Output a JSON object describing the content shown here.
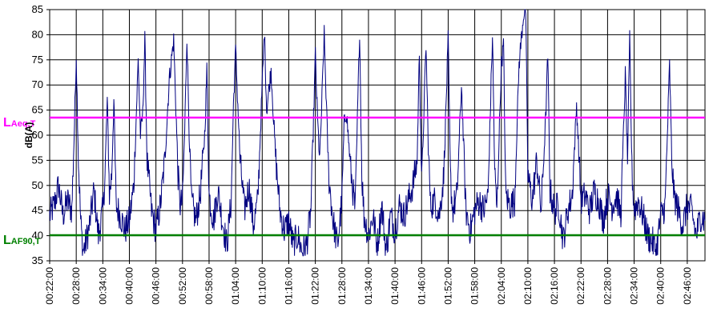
{
  "chart_data": {
    "type": "line",
    "title": "",
    "xlabel": "",
    "ylabel": "dB(A)",
    "ylim": [
      35,
      85
    ],
    "yticks": [
      35,
      40,
      45,
      50,
      55,
      60,
      65,
      70,
      75,
      80,
      85
    ],
    "xrange": [
      "00:22:00",
      "02:50:00"
    ],
    "xtick_labels": [
      "00:22:00",
      "00:28:00",
      "00:34:00",
      "00:40:00",
      "00:46:00",
      "00:52:00",
      "00:58:00",
      "01:04:00",
      "01:10:00",
      "01:16:00",
      "01:22:00",
      "01:28:00",
      "01:34:00",
      "01:40:00",
      "01:46:00",
      "01:52:00",
      "01:58:00",
      "02:04:00",
      "02:10:00",
      "02:16:00",
      "02:22:00",
      "02:28:00",
      "02:34:00",
      "02:40:00",
      "02:46:00"
    ],
    "grid": true,
    "series": [
      {
        "color": "#000080",
        "points": [
          [
            "00:22:00",
            44
          ],
          [
            "00:23:00",
            46
          ],
          [
            "00:24:00",
            50
          ],
          [
            "00:25:00",
            44
          ],
          [
            "00:26:00",
            47
          ],
          [
            "00:27:00",
            45
          ],
          [
            "00:27:30",
            59
          ],
          [
            "00:28:00",
            76
          ],
          [
            "00:28:30",
            55
          ],
          [
            "00:29:00",
            43
          ],
          [
            "00:29:30",
            37
          ],
          [
            "00:30:00",
            38
          ],
          [
            "00:31:00",
            42
          ],
          [
            "00:32:00",
            49
          ],
          [
            "00:33:00",
            40
          ],
          [
            "00:34:00",
            45
          ],
          [
            "00:34:30",
            52
          ],
          [
            "00:35:00",
            67
          ],
          [
            "00:35:30",
            48
          ],
          [
            "00:36:00",
            52
          ],
          [
            "00:36:30",
            67
          ],
          [
            "00:37:00",
            46
          ],
          [
            "00:38:00",
            44
          ],
          [
            "00:39:00",
            41
          ],
          [
            "00:40:00",
            43
          ],
          [
            "00:41:00",
            50
          ],
          [
            "00:42:00",
            75
          ],
          [
            "00:42:30",
            60
          ],
          [
            "00:43:00",
            64
          ],
          [
            "00:43:30",
            79
          ],
          [
            "00:44:00",
            55
          ],
          [
            "00:45:00",
            45
          ],
          [
            "00:46:00",
            41
          ],
          [
            "00:47:00",
            46
          ],
          [
            "00:48:00",
            55
          ],
          [
            "00:49:00",
            71
          ],
          [
            "00:50:00",
            79
          ],
          [
            "00:51:00",
            52
          ],
          [
            "00:51:30",
            46
          ],
          [
            "00:52:00",
            47
          ],
          [
            "00:52:30",
            61
          ],
          [
            "00:53:00",
            80
          ],
          [
            "00:53:30",
            61
          ],
          [
            "00:54:00",
            47
          ],
          [
            "00:55:00",
            43
          ],
          [
            "00:56:00",
            48
          ],
          [
            "00:57:00",
            60
          ],
          [
            "00:57:30",
            73
          ],
          [
            "00:58:00",
            48
          ],
          [
            "00:59:00",
            43
          ],
          [
            "01:00:00",
            49
          ],
          [
            "01:01:00",
            43
          ],
          [
            "01:02:00",
            38
          ],
          [
            "01:03:00",
            47
          ],
          [
            "01:03:30",
            66
          ],
          [
            "01:04:00",
            77
          ],
          [
            "01:05:00",
            55
          ],
          [
            "01:06:00",
            45
          ],
          [
            "01:07:00",
            50
          ],
          [
            "01:08:00",
            42
          ],
          [
            "01:09:00",
            47
          ],
          [
            "01:10:00",
            70
          ],
          [
            "01:10:30",
            81
          ],
          [
            "01:11:00",
            65
          ],
          [
            "01:12:00",
            73
          ],
          [
            "01:13:00",
            56
          ],
          [
            "01:14:00",
            45
          ],
          [
            "01:15:00",
            41
          ],
          [
            "01:16:00",
            43
          ],
          [
            "01:17:00",
            38
          ],
          [
            "01:18:00",
            40
          ],
          [
            "01:19:00",
            37
          ],
          [
            "01:20:00",
            38
          ],
          [
            "01:21:00",
            45
          ],
          [
            "01:22:00",
            76
          ],
          [
            "01:22:30",
            63
          ],
          [
            "01:23:00",
            55
          ],
          [
            "01:24:00",
            80
          ],
          [
            "01:25:00",
            52
          ],
          [
            "01:26:00",
            43
          ],
          [
            "01:27:00",
            38
          ],
          [
            "01:28:00",
            47
          ],
          [
            "01:28:30",
            62
          ],
          [
            "01:29:00",
            65
          ],
          [
            "01:30:00",
            53
          ],
          [
            "01:31:00",
            45
          ],
          [
            "01:32:00",
            81
          ],
          [
            "01:32:30",
            52
          ],
          [
            "01:33:00",
            44
          ],
          [
            "01:34:00",
            40
          ],
          [
            "01:35:00",
            44
          ],
          [
            "01:36:00",
            38
          ],
          [
            "01:37:00",
            46
          ],
          [
            "01:38:00",
            37
          ],
          [
            "01:39:00",
            44
          ],
          [
            "01:40:00",
            41
          ],
          [
            "01:41:00",
            46
          ],
          [
            "01:42:00",
            44
          ],
          [
            "01:43:00",
            47
          ],
          [
            "01:44:00",
            50
          ],
          [
            "01:45:00",
            55
          ],
          [
            "01:45:30",
            77
          ],
          [
            "01:46:00",
            50
          ],
          [
            "01:47:00",
            78
          ],
          [
            "01:47:30",
            58
          ],
          [
            "01:48:00",
            46
          ],
          [
            "01:49:00",
            47
          ],
          [
            "01:50:00",
            44
          ],
          [
            "01:51:00",
            52
          ],
          [
            "01:52:00",
            79
          ],
          [
            "01:52:30",
            52
          ],
          [
            "01:53:00",
            45
          ],
          [
            "01:54:00",
            48
          ],
          [
            "01:55:00",
            70
          ],
          [
            "01:56:00",
            45
          ],
          [
            "01:57:00",
            41
          ],
          [
            "01:58:00",
            45
          ],
          [
            "01:59:00",
            47
          ],
          [
            "02:00:00",
            45
          ],
          [
            "02:01:00",
            48
          ],
          [
            "02:02:00",
            80
          ],
          [
            "02:02:30",
            53
          ],
          [
            "02:03:00",
            45
          ],
          [
            "02:04:00",
            74
          ],
          [
            "02:04:30",
            78
          ],
          [
            "02:05:00",
            48
          ],
          [
            "02:06:00",
            46
          ],
          [
            "02:07:00",
            47
          ],
          [
            "02:08:00",
            74
          ],
          [
            "02:09:00",
            84
          ],
          [
            "02:09:30",
            85
          ],
          [
            "02:10:00",
            52
          ],
          [
            "02:11:00",
            47
          ],
          [
            "02:12:00",
            55
          ],
          [
            "02:13:00",
            45
          ],
          [
            "02:14:00",
            63
          ],
          [
            "02:14:30",
            76
          ],
          [
            "02:15:00",
            49
          ],
          [
            "02:16:00",
            45
          ],
          [
            "02:17:00",
            46
          ],
          [
            "02:18:00",
            39
          ],
          [
            "02:19:00",
            45
          ],
          [
            "02:20:00",
            48
          ],
          [
            "02:21:00",
            66
          ],
          [
            "02:22:00",
            47
          ],
          [
            "02:23:00",
            48
          ],
          [
            "02:24:00",
            45
          ],
          [
            "02:25:00",
            49
          ],
          [
            "02:26:00",
            47
          ],
          [
            "02:27:00",
            43
          ],
          [
            "02:28:00",
            48
          ],
          [
            "02:29:00",
            46
          ],
          [
            "02:30:00",
            48
          ],
          [
            "02:31:00",
            44
          ],
          [
            "02:32:00",
            72
          ],
          [
            "02:32:30",
            55
          ],
          [
            "02:33:00",
            79
          ],
          [
            "02:33:30",
            53
          ],
          [
            "02:34:00",
            45
          ],
          [
            "02:35:00",
            47
          ],
          [
            "02:36:00",
            44
          ],
          [
            "02:37:00",
            40
          ],
          [
            "02:38:00",
            39
          ],
          [
            "02:39:00",
            37
          ],
          [
            "02:40:00",
            44
          ],
          [
            "02:41:00",
            46
          ],
          [
            "02:42:00",
            74
          ],
          [
            "02:42:30",
            55
          ],
          [
            "02:43:00",
            48
          ],
          [
            "02:44:00",
            45
          ],
          [
            "02:45:00",
            42
          ],
          [
            "02:46:00",
            46
          ],
          [
            "02:47:00",
            45
          ],
          [
            "02:48:00",
            40
          ],
          [
            "02:49:00",
            44
          ],
          [
            "02:50:00",
            43
          ]
        ]
      }
    ],
    "reference_lines": [
      {
        "label_main": "L",
        "label_sub": "Aeq,T",
        "value": 63.5,
        "color": "#ff00ff"
      },
      {
        "label_main": "L",
        "label_sub": "AF90,T",
        "value": 40.1,
        "color": "#008000"
      }
    ]
  }
}
